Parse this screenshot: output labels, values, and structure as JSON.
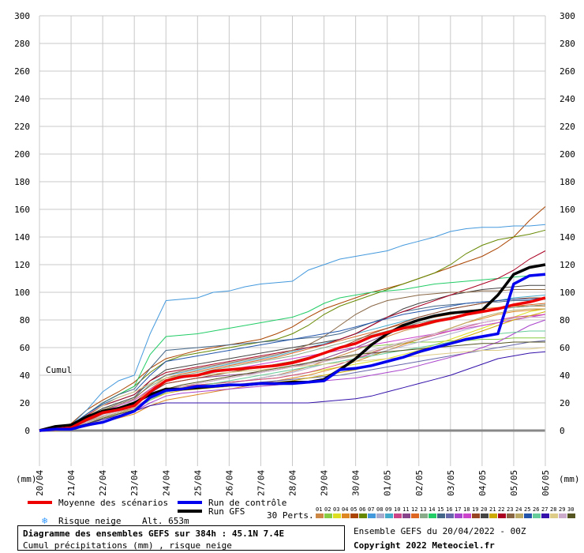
{
  "chart_data": {
    "type": "line",
    "cumul_label": "Cumul",
    "ylabel_left": "(mm)",
    "ylabel_right": "(mm)",
    "ylim": [
      0,
      300
    ],
    "yticks": [
      0,
      20,
      40,
      60,
      80,
      100,
      120,
      140,
      160,
      180,
      200,
      220,
      240,
      260,
      280,
      300
    ],
    "x_dates": [
      "20/04",
      "21/04",
      "22/04",
      "23/04",
      "24/04",
      "25/04",
      "26/04",
      "27/04",
      "28/04",
      "29/04",
      "30/04",
      "01/05",
      "02/05",
      "03/05",
      "04/05",
      "05/05",
      "06/05"
    ],
    "x": [
      0,
      0.5,
      1,
      1.5,
      2,
      2.5,
      3,
      3.5,
      4,
      4.5,
      5,
      5.5,
      6,
      6.5,
      7,
      7.5,
      8,
      8.5,
      9,
      9.5,
      10,
      10.5,
      11,
      11.5,
      12,
      12.5,
      13,
      13.5,
      14,
      14.5,
      15,
      15.5,
      16
    ],
    "mean": {
      "name": "Moyenne des scénarios",
      "color": "#ee0000",
      "values": [
        0,
        1,
        2,
        8,
        13,
        15,
        18,
        28,
        36,
        39,
        40,
        43,
        44,
        45,
        46,
        47,
        49,
        52,
        56,
        60,
        63,
        68,
        71,
        74,
        76,
        79,
        81,
        84,
        86,
        88,
        91,
        93,
        96
      ]
    },
    "control": {
      "name": "Run de contrôle",
      "color": "#0000ee",
      "values": [
        0,
        1,
        1,
        4,
        6,
        10,
        14,
        24,
        29,
        30,
        32,
        32,
        33,
        33,
        34,
        34,
        34,
        35,
        36,
        44,
        45,
        47,
        50,
        53,
        57,
        60,
        63,
        66,
        68,
        70,
        106,
        112,
        113
      ]
    },
    "gfs": {
      "name": "Run GFS",
      "color": "#000000",
      "values": [
        0,
        3,
        4,
        10,
        14,
        16,
        20,
        26,
        30,
        30,
        31,
        32,
        33,
        33,
        34,
        34,
        35,
        35,
        37,
        44,
        52,
        62,
        70,
        76,
        80,
        83,
        85,
        86,
        87,
        98,
        113,
        118,
        120
      ]
    },
    "perturbations": [
      {
        "name": "01",
        "color": "#cc8844",
        "values": [
          0,
          1,
          2,
          6,
          12,
          14,
          16,
          24,
          30,
          32,
          33,
          34,
          35,
          36,
          38,
          40,
          43,
          46,
          50,
          54,
          58,
          63,
          68,
          72,
          75,
          78,
          81,
          84,
          86,
          88,
          90,
          90,
          90
        ]
      },
      {
        "name": "02",
        "color": "#88cc44",
        "values": [
          0,
          1,
          3,
          9,
          15,
          18,
          22,
          30,
          36,
          38,
          40,
          41,
          42,
          44,
          46,
          48,
          50,
          53,
          56,
          58,
          60,
          61,
          62,
          63,
          64,
          64,
          65,
          65,
          66,
          66,
          67,
          67,
          67
        ]
      },
      {
        "name": "03",
        "color": "#dddd22",
        "values": [
          0,
          1,
          2,
          4,
          8,
          12,
          15,
          22,
          28,
          31,
          33,
          34,
          35,
          36,
          37,
          38,
          40,
          42,
          44,
          46,
          48,
          50,
          52,
          55,
          58,
          62,
          66,
          70,
          74,
          78,
          82,
          86,
          88
        ]
      },
      {
        "name": "04",
        "color": "#dd8822",
        "values": [
          0,
          0,
          1,
          3,
          6,
          9,
          12,
          18,
          22,
          24,
          26,
          28,
          30,
          32,
          34,
          36,
          38,
          40,
          43,
          46,
          50,
          54,
          58,
          62,
          66,
          70,
          74,
          78,
          81,
          84,
          86,
          87,
          88
        ]
      },
      {
        "name": "05",
        "color": "#aa4400",
        "values": [
          0,
          2,
          5,
          15,
          22,
          28,
          35,
          45,
          52,
          55,
          58,
          60,
          62,
          64,
          66,
          70,
          75,
          82,
          88,
          92,
          96,
          100,
          103,
          106,
          110,
          114,
          118,
          122,
          126,
          132,
          140,
          152,
          162
        ]
      },
      {
        "name": "06",
        "color": "#668800",
        "values": [
          0,
          2,
          4,
          12,
          20,
          26,
          32,
          42,
          50,
          54,
          56,
          58,
          60,
          62,
          64,
          66,
          70,
          76,
          84,
          90,
          94,
          98,
          102,
          106,
          110,
          114,
          120,
          128,
          134,
          138,
          140,
          142,
          145
        ]
      },
      {
        "name": "07",
        "color": "#4499dd",
        "values": [
          0,
          2,
          4,
          15,
          28,
          36,
          40,
          70,
          94,
          95,
          96,
          100,
          101,
          104,
          106,
          107,
          108,
          116,
          120,
          124,
          126,
          128,
          130,
          134,
          137,
          140,
          144,
          146,
          147,
          147,
          148,
          148,
          149
        ]
      },
      {
        "name": "08",
        "color": "#aaaacc",
        "values": [
          0,
          1,
          2,
          5,
          9,
          12,
          15,
          22,
          28,
          30,
          32,
          33,
          34,
          36,
          38,
          40,
          42,
          45,
          48,
          50,
          52,
          55,
          58,
          61,
          64,
          67,
          70,
          73,
          76,
          78,
          80,
          82,
          84
        ]
      },
      {
        "name": "09",
        "color": "#44aacc",
        "values": [
          0,
          1,
          3,
          10,
          18,
          22,
          26,
          34,
          40,
          42,
          44,
          46,
          48,
          50,
          52,
          54,
          57,
          60,
          63,
          66,
          70,
          73,
          76,
          79,
          82,
          85,
          88,
          90,
          92,
          94,
          96,
          97,
          98
        ]
      },
      {
        "name": "10",
        "color": "#cc4488",
        "values": [
          0,
          1,
          2,
          6,
          10,
          13,
          16,
          24,
          30,
          32,
          33,
          34,
          35,
          36,
          37,
          38,
          40,
          42,
          45,
          48,
          52,
          56,
          60,
          63,
          66,
          69,
          72,
          75,
          78,
          80,
          82,
          83,
          84
        ]
      },
      {
        "name": "11",
        "color": "#884488",
        "values": [
          0,
          1,
          2,
          7,
          12,
          15,
          18,
          27,
          34,
          36,
          38,
          39,
          40,
          41,
          42,
          44,
          46,
          49,
          52,
          56,
          60,
          65,
          70,
          74,
          78,
          80,
          82,
          84,
          86,
          88,
          89,
          90,
          91
        ]
      },
      {
        "name": "12",
        "color": "#dd6622",
        "values": [
          0,
          1,
          3,
          8,
          14,
          17,
          20,
          30,
          38,
          41,
          43,
          45,
          47,
          49,
          51,
          53,
          56,
          59,
          62,
          65,
          68,
          71,
          74,
          77,
          80,
          82,
          84,
          86,
          88,
          89,
          90,
          91,
          92
        ]
      },
      {
        "name": "13",
        "color": "#88aa88",
        "values": [
          0,
          1,
          3,
          9,
          16,
          20,
          24,
          32,
          38,
          40,
          42,
          44,
          46,
          48,
          50,
          52,
          54,
          57,
          60,
          63,
          66,
          69,
          72,
          75,
          78,
          80,
          82,
          84,
          86,
          88,
          89,
          90,
          91
        ]
      },
      {
        "name": "14",
        "color": "#22cc66",
        "values": [
          0,
          2,
          4,
          12,
          20,
          26,
          32,
          55,
          68,
          69,
          70,
          72,
          74,
          76,
          78,
          80,
          82,
          86,
          92,
          96,
          98,
          100,
          101,
          102,
          104,
          106,
          107,
          108,
          109,
          110,
          111,
          112,
          113
        ]
      },
      {
        "name": "15",
        "color": "#446688",
        "values": [
          0,
          2,
          4,
          12,
          20,
          26,
          30,
          45,
          58,
          59,
          60,
          61,
          62,
          63,
          64,
          65,
          66,
          67,
          68,
          70,
          74,
          78,
          82,
          86,
          88,
          90,
          91,
          92,
          93,
          93,
          94,
          94,
          95
        ]
      },
      {
        "name": "16",
        "color": "#6666aa",
        "values": [
          0,
          1,
          2,
          6,
          10,
          13,
          16,
          23,
          28,
          30,
          31,
          32,
          33,
          34,
          35,
          36,
          37,
          38,
          39,
          40,
          42,
          44,
          46,
          48,
          50,
          52,
          54,
          56,
          58,
          60,
          62,
          64,
          65
        ]
      },
      {
        "name": "17",
        "color": "#aa44cc",
        "values": [
          0,
          1,
          2,
          5,
          9,
          12,
          14,
          20,
          25,
          27,
          28,
          29,
          30,
          31,
          32,
          33,
          34,
          35,
          36,
          37,
          38,
          40,
          42,
          44,
          47,
          50,
          53,
          56,
          60,
          64,
          70,
          76,
          80
        ]
      },
      {
        "name": "18",
        "color": "#cc44cc",
        "values": [
          0,
          1,
          3,
          8,
          14,
          18,
          22,
          30,
          36,
          38,
          40,
          42,
          44,
          46,
          48,
          50,
          52,
          54,
          56,
          58,
          60,
          62,
          64,
          66,
          68,
          70,
          72,
          74,
          76,
          78,
          80,
          82,
          84
        ]
      },
      {
        "name": "19",
        "color": "#994422",
        "values": [
          0,
          1,
          2,
          7,
          12,
          16,
          20,
          28,
          34,
          36,
          38,
          40,
          42,
          44,
          46,
          48,
          50,
          53,
          56,
          60,
          65,
          70,
          74,
          78,
          82,
          85,
          88,
          90,
          92,
          94,
          95,
          96,
          96
        ]
      },
      {
        "name": "20",
        "color": "#444444",
        "values": [
          0,
          2,
          4,
          10,
          16,
          20,
          24,
          36,
          44,
          46,
          48,
          50,
          52,
          54,
          56,
          58,
          60,
          62,
          64,
          66,
          70,
          76,
          82,
          88,
          92,
          95,
          98,
          100,
          102,
          103,
          104,
          105,
          105
        ]
      },
      {
        "name": "21",
        "color": "#ccaa00",
        "values": [
          0,
          1,
          2,
          5,
          9,
          12,
          15,
          22,
          27,
          29,
          30,
          31,
          32,
          33,
          34,
          35,
          36,
          38,
          40,
          42,
          44,
          47,
          50,
          53,
          56,
          60,
          64,
          68,
          72,
          76,
          80,
          83,
          86
        ]
      },
      {
        "name": "22",
        "color": "#aa0022",
        "values": [
          0,
          2,
          4,
          11,
          18,
          22,
          26,
          36,
          42,
          44,
          46,
          48,
          50,
          52,
          54,
          56,
          58,
          60,
          62,
          66,
          70,
          76,
          82,
          86,
          90,
          94,
          98,
          102,
          106,
          110,
          116,
          124,
          130
        ]
      },
      {
        "name": "23",
        "color": "#886644",
        "values": [
          0,
          1,
          3,
          9,
          15,
          19,
          23,
          33,
          40,
          43,
          45,
          47,
          49,
          51,
          53,
          55,
          58,
          62,
          68,
          76,
          84,
          90,
          94,
          96,
          98,
          99,
          100,
          100,
          101,
          101,
          102,
          102,
          102
        ]
      },
      {
        "name": "24",
        "color": "#bbaa66",
        "values": [
          0,
          1,
          2,
          6,
          10,
          13,
          16,
          24,
          30,
          32,
          34,
          36,
          38,
          40,
          42,
          44,
          46,
          48,
          50,
          52,
          54,
          57,
          60,
          63,
          66,
          70,
          74,
          78,
          82,
          85,
          87,
          88,
          88
        ]
      },
      {
        "name": "25",
        "color": "#2255aa",
        "values": [
          0,
          2,
          4,
          12,
          19,
          24,
          28,
          40,
          50,
          52,
          54,
          56,
          58,
          60,
          62,
          64,
          66,
          68,
          70,
          72,
          75,
          78,
          81,
          84,
          86,
          88,
          90,
          92,
          93,
          94,
          95,
          95,
          96
        ]
      },
      {
        "name": "26",
        "color": "#66cc99",
        "values": [
          0,
          1,
          2,
          5,
          9,
          12,
          15,
          22,
          28,
          30,
          32,
          34,
          36,
          38,
          40,
          42,
          44,
          46,
          48,
          50,
          52,
          54,
          56,
          58,
          60,
          62,
          64,
          66,
          68,
          70,
          71,
          72,
          72
        ]
      },
      {
        "name": "27",
        "color": "#3311aa",
        "values": [
          0,
          1,
          2,
          5,
          8,
          11,
          14,
          18,
          20,
          20,
          20,
          20,
          20,
          20,
          20,
          20,
          20,
          20,
          21,
          22,
          23,
          25,
          28,
          31,
          34,
          37,
          40,
          44,
          48,
          52,
          54,
          56,
          57
        ]
      },
      {
        "name": "28",
        "color": "#ddcc88",
        "values": [
          0,
          1,
          3,
          10,
          18,
          24,
          28,
          34,
          38,
          39,
          40,
          41,
          42,
          43,
          44,
          45,
          46,
          47,
          48,
          49,
          50,
          51,
          52,
          53,
          54,
          55,
          56,
          57,
          58,
          58,
          59,
          59,
          60
        ]
      },
      {
        "name": "29",
        "color": "#ccaacc",
        "values": [
          0,
          1,
          2,
          6,
          11,
          14,
          17,
          24,
          30,
          32,
          34,
          36,
          38,
          40,
          42,
          44,
          46,
          48,
          50,
          52,
          55,
          58,
          61,
          64,
          67,
          70,
          73,
          76,
          78,
          80,
          81,
          82,
          82
        ]
      },
      {
        "name": "30",
        "color": "#555522",
        "values": [
          0,
          1,
          2,
          5,
          9,
          12,
          15,
          23,
          30,
          33,
          35,
          37,
          39,
          41,
          43,
          45,
          47,
          49,
          51,
          53,
          55,
          56,
          57,
          58,
          59,
          60,
          61,
          62,
          63,
          63,
          64,
          64,
          64
        ]
      }
    ]
  },
  "legend": {
    "perts_label": "30 Perts.",
    "snow_label": "Risque neige",
    "alt_label": "Alt. 653m",
    "snow_icon": "snowflake-icon",
    "snow_glyph": "❄"
  },
  "footer": {
    "title": "Diagramme des ensembles GEFS sur 384h : 45.1N 7.4E",
    "subtitle": "Cumul précipitations (mm) , risque neige",
    "run_info": "Ensemble GEFS du 20/04/2022 - 00Z",
    "copyright": "Copyright 2022 Meteociel.fr"
  }
}
